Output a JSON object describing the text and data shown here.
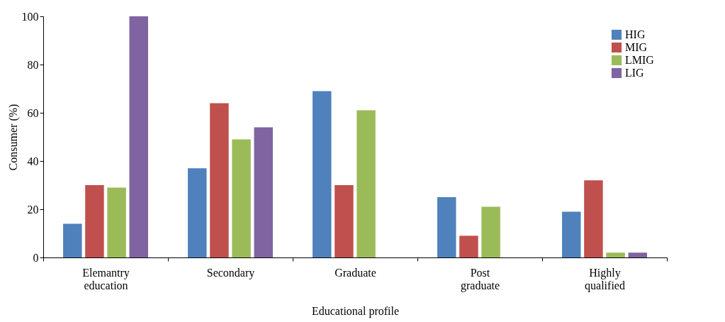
{
  "chart_data": {
    "type": "bar",
    "xlabel": "Educational profile",
    "ylabel": "Consumer (%)",
    "categories": [
      "Elemantry education",
      "Secondary",
      "Graduate",
      "Post graduate",
      "Highly qualified"
    ],
    "series": [
      {
        "name": "HIG",
        "color": "#4f81bd",
        "values": [
          14,
          37,
          69,
          25,
          19
        ]
      },
      {
        "name": "MIG",
        "color": "#c0504d",
        "values": [
          30,
          64,
          30,
          9,
          32
        ]
      },
      {
        "name": "LMIG",
        "color": "#9bbb59",
        "values": [
          29,
          49,
          61,
          21,
          2
        ]
      },
      {
        "name": "LIG",
        "color": "#8064a2",
        "values": [
          100,
          54,
          0,
          0,
          2
        ]
      }
    ],
    "ylim": [
      0,
      100
    ],
    "yticks": [
      0,
      20,
      40,
      60,
      80,
      100
    ],
    "grid": false,
    "legend": "top right"
  }
}
